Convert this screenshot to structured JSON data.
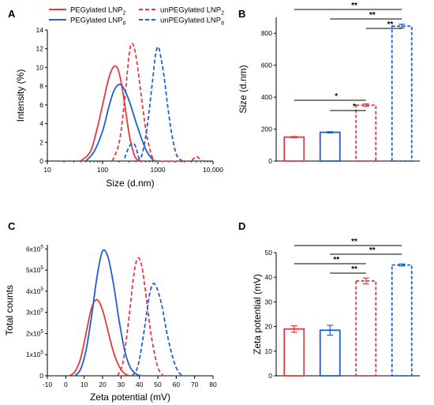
{
  "chart_data": [
    {
      "panel": "A",
      "type": "line",
      "xlabel": "Size (d.nm)",
      "ylabel": "Intensity (%)",
      "xscale": "log",
      "xlim": [
        10,
        10000
      ],
      "ylim": [
        0,
        14
      ],
      "xticks": [
        "10",
        "100",
        "1000",
        "10,000"
      ],
      "yticks": [
        0,
        2,
        4,
        6,
        8,
        10,
        12,
        14
      ],
      "legend": {
        "placement": "top",
        "entries": [
          "PEGylated LNP2",
          "unPEGylated LNP2",
          "PEGylated LNP8",
          "unPEGylated LNP8"
        ]
      },
      "series": [
        {
          "name": "PEGylated LNP2",
          "color": "#e8383d",
          "dash": "solid",
          "x": [
            40,
            60,
            80,
            100,
            130,
            160,
            190,
            220,
            260,
            300,
            350,
            400,
            500
          ],
          "y": [
            0.0,
            1.0,
            3.5,
            6.0,
            8.9,
            10.1,
            9.8,
            8.2,
            5.5,
            3.0,
            1.2,
            0.3,
            0.0
          ]
        },
        {
          "name": "unPEGylated LNP2",
          "color": "#e8383d",
          "dash": "dashed",
          "x": [
            150,
            200,
            250,
            300,
            330,
            370,
            420,
            500,
            600,
            700,
            800,
            1000,
            3500,
            4500,
            5000,
            5500,
            6500
          ],
          "y": [
            0.0,
            2.0,
            6.5,
            11.2,
            12.5,
            12.2,
            10.5,
            7.0,
            3.5,
            1.5,
            0.4,
            0.0,
            0.0,
            0.3,
            0.5,
            0.3,
            0.0
          ]
        },
        {
          "name": "PEGylated LNP8",
          "color": "#1f5fd0",
          "dash": "solid",
          "x": [
            50,
            70,
            100,
            130,
            160,
            200,
            240,
            300,
            400,
            500,
            600,
            700,
            850
          ],
          "y": [
            0.0,
            1.0,
            3.2,
            5.8,
            7.5,
            8.2,
            7.8,
            6.5,
            4.2,
            2.5,
            1.3,
            0.6,
            0.0
          ]
        },
        {
          "name": "unPEGylated LNP8",
          "color": "#1f5fd0",
          "dash": "dashed",
          "x": [
            250,
            300,
            350,
            400,
            450,
            500,
            600,
            700,
            800,
            900,
            1000,
            1100,
            1300,
            1500,
            1800,
            2200,
            2800
          ],
          "y": [
            0.3,
            1.5,
            1.9,
            1.5,
            0.4,
            0.4,
            2.5,
            5.5,
            8.5,
            11.2,
            12.2,
            11.5,
            9.0,
            6.0,
            2.8,
            0.6,
            0.0
          ]
        }
      ]
    },
    {
      "panel": "B",
      "type": "bar",
      "ylabel": "Size (d.nm)",
      "ylim": [
        0,
        900
      ],
      "yticks": [
        0,
        200,
        400,
        600,
        800
      ],
      "bars": [
        {
          "value": 150,
          "error": 4,
          "color": "#e8383d",
          "dash": "solid"
        },
        {
          "value": 180,
          "error": 4,
          "color": "#1f5fd0",
          "dash": "solid"
        },
        {
          "value": 350,
          "error": 8,
          "color": "#e8383d",
          "dash": "dashed"
        },
        {
          "value": 845,
          "error": 12,
          "color": "#1f5fd0",
          "dash": "dashed"
        }
      ],
      "significance": [
        {
          "from": 0,
          "to": 3,
          "label": "**"
        },
        {
          "from": 1,
          "to": 3,
          "label": "**"
        },
        {
          "from": 2,
          "to": 3,
          "label": "**"
        },
        {
          "from": 0,
          "to": 2,
          "label": "*"
        },
        {
          "from": 1,
          "to": 2,
          "label": "*"
        }
      ]
    },
    {
      "panel": "C",
      "type": "line",
      "xlabel": "Zeta potential (mV)",
      "ylabel": "Total counts",
      "xlim": [
        -10,
        80
      ],
      "ylim": [
        0,
        620000
      ],
      "xticks": [
        -10,
        0,
        10,
        20,
        30,
        40,
        50,
        60,
        70,
        80
      ],
      "yticks": [
        "0",
        "1x10^5",
        "2x10^5",
        "3x10^5",
        "4x10^5",
        "5x10^5",
        "6x10^5"
      ],
      "series": [
        {
          "name": "PEGylated LNP2",
          "color": "#e8383d",
          "dash": "solid",
          "x": [
            2,
            5,
            8,
            11,
            14,
            17,
            20,
            23,
            26,
            29,
            32,
            35
          ],
          "y": [
            0,
            20000,
            80000,
            200000,
            320000,
            360000,
            310000,
            210000,
            110000,
            45000,
            10000,
            0
          ]
        },
        {
          "name": "unPEGylated LNP2",
          "color": "#e8383d",
          "dash": "dashed",
          "x": [
            28,
            31,
            34,
            37,
            39,
            41,
            43,
            45,
            47,
            50,
            53
          ],
          "y": [
            0,
            60000,
            250000,
            480000,
            555000,
            530000,
            420000,
            280000,
            160000,
            40000,
            0
          ]
        },
        {
          "name": "PEGylated LNP8",
          "color": "#1f5fd0",
          "dash": "solid",
          "x": [
            5,
            8,
            11,
            14,
            17,
            20,
            23,
            26,
            29,
            32,
            35,
            38,
            41
          ],
          "y": [
            0,
            30000,
            120000,
            280000,
            470000,
            590000,
            560000,
            430000,
            260000,
            120000,
            40000,
            10000,
            0
          ]
        },
        {
          "name": "unPEGylated LNP8",
          "color": "#1f5fd0",
          "dash": "dashed",
          "x": [
            36,
            39,
            42,
            45,
            47,
            49,
            52,
            55,
            58,
            61,
            64
          ],
          "y": [
            0,
            40000,
            180000,
            360000,
            430000,
            425000,
            340000,
            200000,
            90000,
            20000,
            0
          ]
        }
      ]
    },
    {
      "panel": "D",
      "type": "bar",
      "ylabel": "Zeta potential (mV)",
      "ylim": [
        0,
        50
      ],
      "yticks": [
        0,
        10,
        20,
        30,
        40,
        50
      ],
      "bars": [
        {
          "value": 19,
          "error": 1.3,
          "color": "#e8383d",
          "dash": "solid"
        },
        {
          "value": 18.5,
          "error": 2,
          "color": "#1f5fd0",
          "dash": "solid"
        },
        {
          "value": 38.5,
          "error": 1.2,
          "color": "#e8383d",
          "dash": "dashed"
        },
        {
          "value": 45,
          "error": 0.4,
          "color": "#1f5fd0",
          "dash": "dashed"
        }
      ],
      "significance": [
        {
          "from": 0,
          "to": 3,
          "label": "**"
        },
        {
          "from": 1,
          "to": 3,
          "label": "**"
        },
        {
          "from": 0,
          "to": 2,
          "label": "**"
        },
        {
          "from": 1,
          "to": 2,
          "label": "**"
        }
      ]
    }
  ]
}
